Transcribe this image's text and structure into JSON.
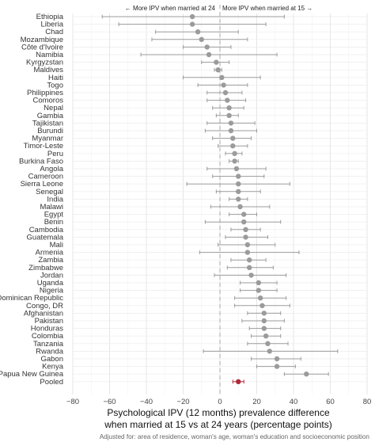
{
  "chart_data": {
    "type": "forest",
    "annotation_left": "← More IPV when married at 24",
    "annotation_right": "More IPV when married at 15 →",
    "xlabel_line1": "Psychological IPV (12 months) prevalence difference",
    "xlabel_line2": "when married at 15 vs at 24 years (percentage points)",
    "footnote": "Adjusted for: area of residence, woman's age, woman's education and socioeconomic position",
    "xlim": [
      -80,
      80
    ],
    "xticks": [
      -80,
      -60,
      -40,
      -20,
      0,
      20,
      40,
      60,
      80
    ],
    "reference_line": 0,
    "grid": true,
    "point_color": "#9b9b9b",
    "ci_color": "#9b9b9b",
    "pooled_color": "#b02a3a",
    "rows": [
      {
        "label": "Ethiopia",
        "est": -15,
        "lo": -64,
        "hi": 35
      },
      {
        "label": "Liberia",
        "est": -15,
        "lo": -55,
        "hi": 25
      },
      {
        "label": "Chad",
        "est": -12,
        "lo": -35,
        "hi": 10
      },
      {
        "label": "Mozambique",
        "est": -10,
        "lo": -37,
        "hi": 15
      },
      {
        "label": "Côte d'Ivoire",
        "est": -7,
        "lo": -20,
        "hi": 6
      },
      {
        "label": "Namibia",
        "est": -6,
        "lo": -43,
        "hi": 31
      },
      {
        "label": "Kyrgyzstan",
        "est": -2,
        "lo": -10,
        "hi": 5
      },
      {
        "label": "Maldives",
        "est": -1,
        "lo": -3,
        "hi": 1
      },
      {
        "label": "Haiti",
        "est": 1,
        "lo": -20,
        "hi": 22
      },
      {
        "label": "Togo",
        "est": 2,
        "lo": -12,
        "hi": 15
      },
      {
        "label": "Philippines",
        "est": 3,
        "lo": -7,
        "hi": 12
      },
      {
        "label": "Comoros",
        "est": 4,
        "lo": -7,
        "hi": 14
      },
      {
        "label": "Nepal",
        "est": 5,
        "lo": -4,
        "hi": 13
      },
      {
        "label": "Gambia",
        "est": 5,
        "lo": -2,
        "hi": 10
      },
      {
        "label": "Tajikistan",
        "est": 6,
        "lo": -7,
        "hi": 19
      },
      {
        "label": "Burundi",
        "est": 6,
        "lo": -8,
        "hi": 20
      },
      {
        "label": "Myanmar",
        "est": 7,
        "lo": -4,
        "hi": 17
      },
      {
        "label": "Timor-Leste",
        "est": 7,
        "lo": -1,
        "hi": 15
      },
      {
        "label": "Peru",
        "est": 8,
        "lo": 3,
        "hi": 12
      },
      {
        "label": "Burkina Faso",
        "est": 8,
        "lo": 5,
        "hi": 10
      },
      {
        "label": "Angola",
        "est": 9,
        "lo": -7,
        "hi": 25
      },
      {
        "label": "Cameroon",
        "est": 10,
        "lo": -4,
        "hi": 24
      },
      {
        "label": "Sierra Leone",
        "est": 10,
        "lo": -18,
        "hi": 38
      },
      {
        "label": "Senegal",
        "est": 10,
        "lo": -2,
        "hi": 22
      },
      {
        "label": "India",
        "est": 10,
        "lo": 5,
        "hi": 15
      },
      {
        "label": "Malawi",
        "est": 11,
        "lo": -5,
        "hi": 27
      },
      {
        "label": "Egypt",
        "est": 13,
        "lo": 5,
        "hi": 20
      },
      {
        "label": "Benin",
        "est": 13,
        "lo": -8,
        "hi": 33
      },
      {
        "label": "Cambodia",
        "est": 14,
        "lo": 6,
        "hi": 22
      },
      {
        "label": "Guatemala",
        "est": 14,
        "lo": 3,
        "hi": 26
      },
      {
        "label": "Mali",
        "est": 15,
        "lo": -1,
        "hi": 30
      },
      {
        "label": "Armenia",
        "est": 15,
        "lo": -11,
        "hi": 43
      },
      {
        "label": "Zambia",
        "est": 16,
        "lo": 6,
        "hi": 25
      },
      {
        "label": "Zimbabwe",
        "est": 16,
        "lo": 4,
        "hi": 29
      },
      {
        "label": "Jordan",
        "est": 17,
        "lo": -3,
        "hi": 36
      },
      {
        "label": "Uganda",
        "est": 21,
        "lo": 11,
        "hi": 31
      },
      {
        "label": "Nigeria",
        "est": 21,
        "lo": 11,
        "hi": 31
      },
      {
        "label": "Dominican Republic",
        "est": 22,
        "lo": 8,
        "hi": 36
      },
      {
        "label": "Congo, DR",
        "est": 23,
        "lo": 8,
        "hi": 38
      },
      {
        "label": "Afghanistan",
        "est": 24,
        "lo": 15,
        "hi": 33
      },
      {
        "label": "Pakistan",
        "est": 24,
        "lo": 12,
        "hi": 35
      },
      {
        "label": "Honduras",
        "est": 24,
        "lo": 16,
        "hi": 33
      },
      {
        "label": "Colombia",
        "est": 25,
        "lo": 17,
        "hi": 33
      },
      {
        "label": "Tanzania",
        "est": 26,
        "lo": 15,
        "hi": 37
      },
      {
        "label": "Rwanda",
        "est": 27,
        "lo": -9,
        "hi": 64
      },
      {
        "label": "Gabon",
        "est": 31,
        "lo": 17,
        "hi": 44
      },
      {
        "label": "Kenya",
        "est": 31,
        "lo": 20,
        "hi": 41
      },
      {
        "label": "Papua New Guinea",
        "est": 47,
        "lo": 35,
        "hi": 59
      },
      {
        "label": "Pooled",
        "est": 10,
        "lo": 7,
        "hi": 13,
        "pooled": true
      }
    ]
  }
}
